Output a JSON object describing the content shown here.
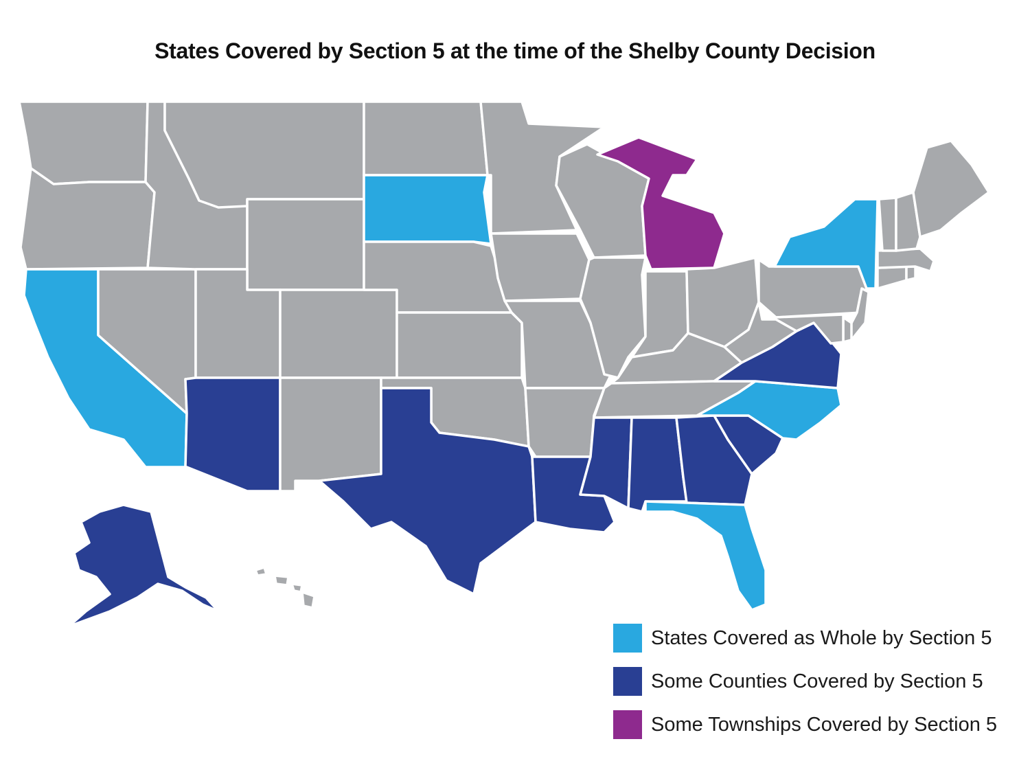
{
  "title": "States Covered by Section 5 at the time of the Shelby County Decision",
  "colors": {
    "whole": "#29a8e0",
    "counties": "#293f93",
    "townships": "#8e2a8e",
    "uncovered": "#a7a9ac",
    "border": "#ffffff"
  },
  "legend": [
    {
      "key": "whole",
      "label": "States Covered as Whole by Section 5"
    },
    {
      "key": "counties",
      "label": "Some Counties Covered by Section 5"
    },
    {
      "key": "townships",
      "label": "Some Townships Covered by Section 5"
    }
  ],
  "states": [
    {
      "id": "WA",
      "category": "uncovered"
    },
    {
      "id": "OR",
      "category": "uncovered"
    },
    {
      "id": "CA",
      "category": "whole"
    },
    {
      "id": "NV",
      "category": "uncovered"
    },
    {
      "id": "ID",
      "category": "uncovered"
    },
    {
      "id": "MT",
      "category": "uncovered"
    },
    {
      "id": "WY",
      "category": "uncovered"
    },
    {
      "id": "UT",
      "category": "uncovered"
    },
    {
      "id": "CO",
      "category": "uncovered"
    },
    {
      "id": "AZ",
      "category": "counties"
    },
    {
      "id": "NM",
      "category": "uncovered"
    },
    {
      "id": "ND",
      "category": "uncovered"
    },
    {
      "id": "SD",
      "category": "whole"
    },
    {
      "id": "NE",
      "category": "uncovered"
    },
    {
      "id": "KS",
      "category": "uncovered"
    },
    {
      "id": "OK",
      "category": "uncovered"
    },
    {
      "id": "TX",
      "category": "counties"
    },
    {
      "id": "MN",
      "category": "uncovered"
    },
    {
      "id": "IA",
      "category": "uncovered"
    },
    {
      "id": "MO",
      "category": "uncovered"
    },
    {
      "id": "AR",
      "category": "uncovered"
    },
    {
      "id": "LA",
      "category": "counties"
    },
    {
      "id": "WI",
      "category": "uncovered"
    },
    {
      "id": "IL",
      "category": "uncovered"
    },
    {
      "id": "MI",
      "category": "townships"
    },
    {
      "id": "IN",
      "category": "uncovered"
    },
    {
      "id": "OH",
      "category": "uncovered"
    },
    {
      "id": "KY",
      "category": "uncovered"
    },
    {
      "id": "TN",
      "category": "uncovered"
    },
    {
      "id": "MS",
      "category": "counties"
    },
    {
      "id": "AL",
      "category": "counties"
    },
    {
      "id": "GA",
      "category": "counties"
    },
    {
      "id": "FL",
      "category": "whole"
    },
    {
      "id": "SC",
      "category": "counties"
    },
    {
      "id": "NC",
      "category": "whole"
    },
    {
      "id": "VA",
      "category": "counties"
    },
    {
      "id": "WV",
      "category": "uncovered"
    },
    {
      "id": "PA",
      "category": "uncovered"
    },
    {
      "id": "NY",
      "category": "whole"
    },
    {
      "id": "NJ",
      "category": "uncovered"
    },
    {
      "id": "DE",
      "category": "uncovered"
    },
    {
      "id": "MD",
      "category": "uncovered"
    },
    {
      "id": "CT",
      "category": "uncovered"
    },
    {
      "id": "RI",
      "category": "uncovered"
    },
    {
      "id": "MA",
      "category": "uncovered"
    },
    {
      "id": "VT",
      "category": "uncovered"
    },
    {
      "id": "NH",
      "category": "uncovered"
    },
    {
      "id": "ME",
      "category": "uncovered"
    },
    {
      "id": "AK",
      "category": "counties"
    },
    {
      "id": "HI",
      "category": "uncovered"
    }
  ]
}
